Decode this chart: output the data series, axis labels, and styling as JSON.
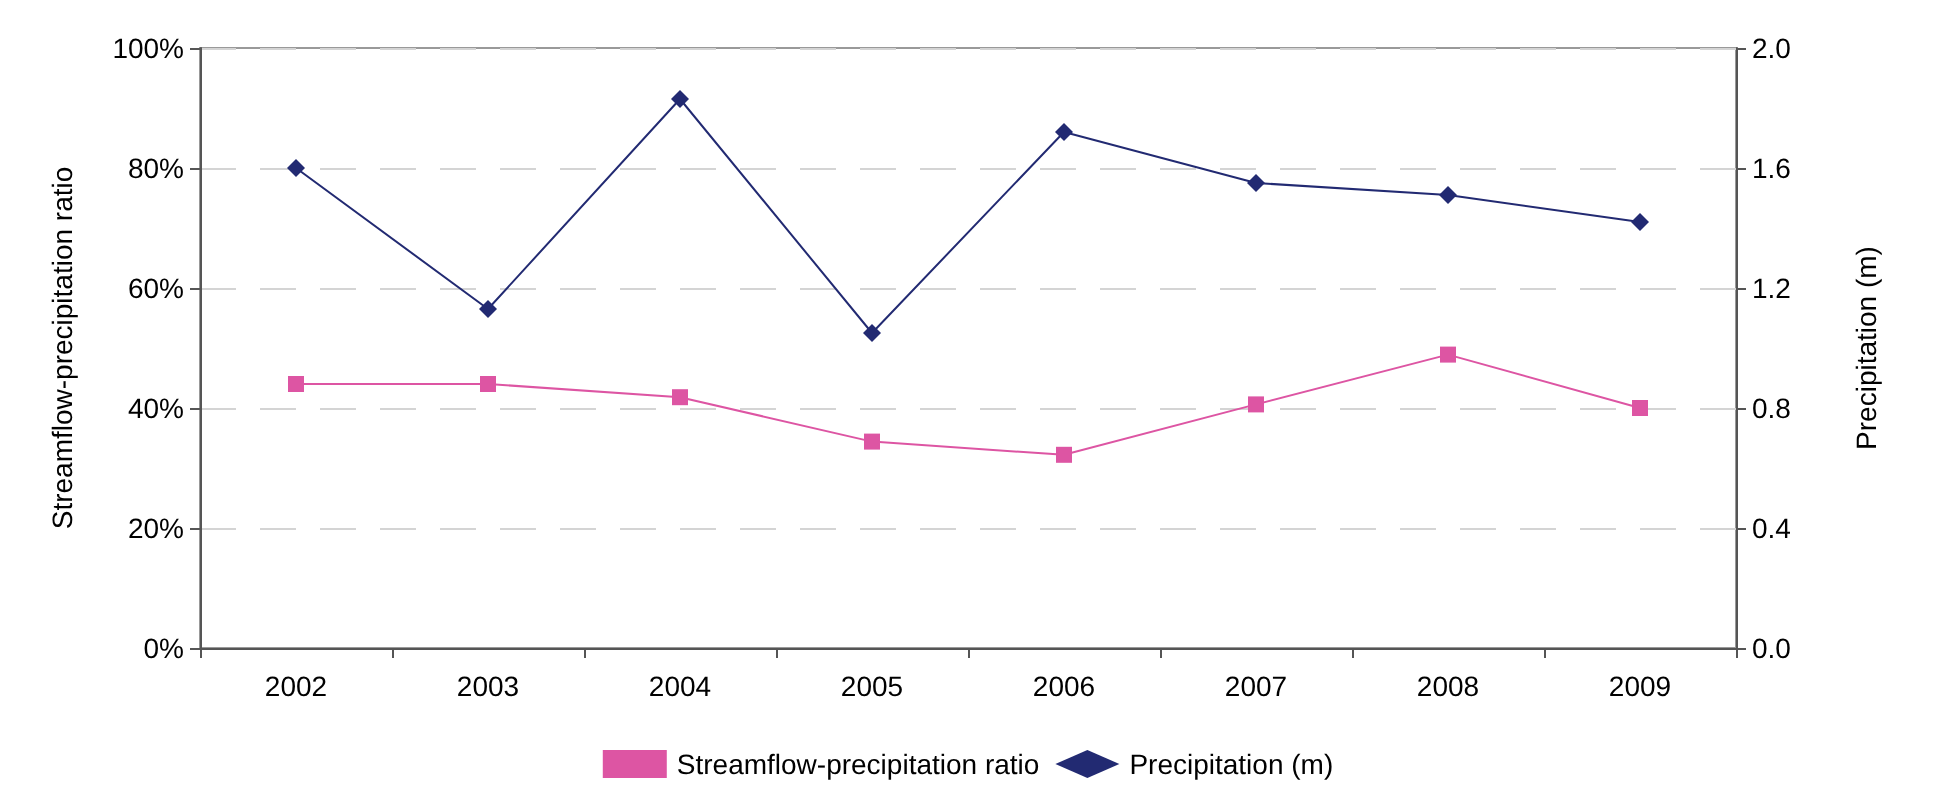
{
  "chart_data": {
    "type": "line",
    "ylabel": "Streamflow-precipitation ratio",
    "y2label": "Precipitation (m)",
    "categories": [
      "2002",
      "2003",
      "2004",
      "2005",
      "2006",
      "2007",
      "2008",
      "2009"
    ],
    "series": [
      {
        "name": "Streamflow-precipitation ratio",
        "color": "#dd55a3",
        "marker": "square",
        "values": [
          44.0,
          44.0,
          41.8,
          34.4,
          32.2,
          40.6,
          48.9,
          40.0
        ]
      },
      {
        "name": "Precipitation (m)",
        "color": "#222a72",
        "marker": "diamond",
        "axis": "y2",
        "values": [
          1.6,
          1.13,
          1.83,
          1.05,
          1.72,
          1.55,
          1.51,
          1.42
        ]
      }
    ],
    "ylim": [
      0,
      100
    ],
    "yticks": [
      {
        "value": 0,
        "label": "0%"
      },
      {
        "value": 20,
        "label": "20%"
      },
      {
        "value": 40,
        "label": "40%"
      },
      {
        "value": 60,
        "label": "60%"
      },
      {
        "value": 80,
        "label": "80%"
      },
      {
        "value": 100,
        "label": "100%"
      }
    ],
    "y2lim": [
      0,
      2
    ],
    "y2ticks": [
      {
        "value": 0,
        "label": "0.0"
      },
      {
        "value": 0.4,
        "label": "0.4"
      },
      {
        "value": 0.8,
        "label": "0.8"
      },
      {
        "value": 1.2,
        "label": "1.2"
      },
      {
        "value": 1.6,
        "label": "1.6"
      },
      {
        "value": 2,
        "label": "2.0"
      }
    ],
    "grid": "y",
    "legend": "bottom",
    "line_style": "solid"
  }
}
